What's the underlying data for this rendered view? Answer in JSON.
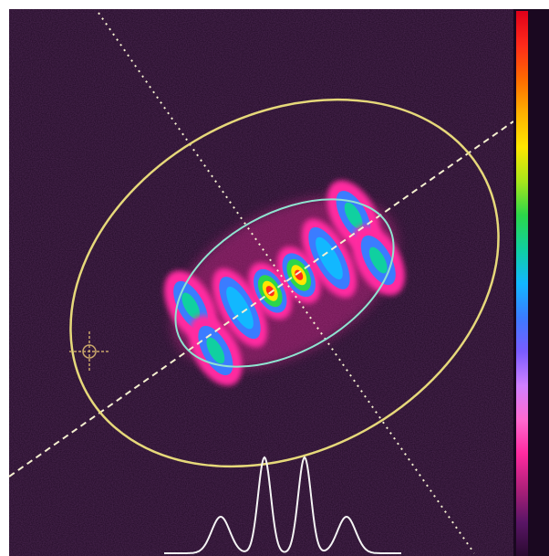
{
  "app": {
    "title": ""
  },
  "view": {
    "background_color": "#200a24",
    "major_ellipse_color": "#e6d87a",
    "fit_ellipse_color": "#8fe3d0",
    "axis_line_color": "#f5f0d0",
    "profile_color": "#f4f4f4",
    "crosshair_color": "#c9a66a",
    "crosshair_icon": "crosshair-icon",
    "lobes_visible": 6,
    "colormap": [
      "#2a0a30",
      "#5a1566",
      "#b0207a",
      "#ff2aa0",
      "#ff6ad0",
      "#d080ff",
      "#7a5cff",
      "#3b7cff",
      "#12b8ff",
      "#10d0a0",
      "#2bd64a",
      "#a8e61b",
      "#ffe600",
      "#ffb000",
      "#ff6a00",
      "#ff2a1a",
      "#e0001a"
    ]
  }
}
